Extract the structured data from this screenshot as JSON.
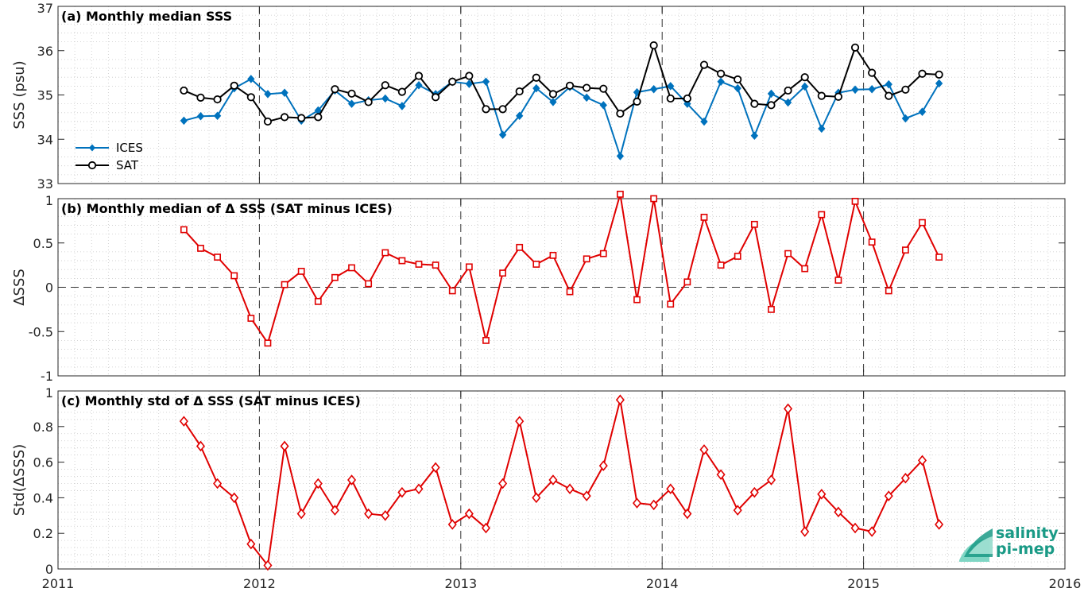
{
  "chart_data": [
    {
      "type": "line",
      "title": "(a) Monthly median SSS",
      "ylabel": "SSS (psu)",
      "xlabel": "",
      "xlim": [
        2011,
        2016
      ],
      "ylim": [
        33,
        37
      ],
      "yticks": [
        33,
        34,
        35,
        36,
        37
      ],
      "grid": "minor dotted",
      "legend_position": "middle-left",
      "series": [
        {
          "name": "ICES",
          "color": "#0072BD",
          "marker": "diamond-filled",
          "x": [
            "2011-08",
            "2011-09",
            "2011-10",
            "2011-11",
            "2011-12",
            "2012-01",
            "2012-02",
            "2012-03",
            "2012-04",
            "2012-05",
            "2012-06",
            "2012-07",
            "2012-08",
            "2012-09",
            "2012-10",
            "2012-11",
            "2012-12",
            "2013-01",
            "2013-02",
            "2013-03",
            "2013-04",
            "2013-05",
            "2013-06",
            "2013-07",
            "2013-08",
            "2013-09",
            "2013-10",
            "2013-11",
            "2013-12",
            "2014-01",
            "2014-02",
            "2014-03",
            "2014-04",
            "2014-05",
            "2014-06",
            "2014-07",
            "2014-08",
            "2014-09",
            "2014-10",
            "2014-11",
            "2014-12",
            "2015-01",
            "2015-02",
            "2015-03",
            "2015-04",
            "2015-05"
          ],
          "values": [
            34.42,
            34.52,
            34.53,
            35.15,
            35.36,
            35.02,
            35.05,
            34.42,
            34.65,
            35.1,
            34.8,
            34.88,
            34.92,
            34.75,
            35.22,
            35.02,
            35.3,
            35.25,
            35.3,
            34.1,
            34.53,
            35.15,
            34.84,
            35.18,
            34.94,
            34.77,
            33.62,
            35.06,
            35.13,
            35.2,
            34.8,
            34.4,
            35.3,
            35.15,
            34.08,
            35.03,
            34.83,
            35.19,
            34.24,
            35.05,
            35.12,
            35.13,
            35.24,
            34.47,
            34.62,
            35.26
          ]
        },
        {
          "name": "SAT",
          "color": "#000000",
          "marker": "circle-open",
          "x": [
            "2011-08",
            "2011-09",
            "2011-10",
            "2011-11",
            "2011-12",
            "2012-01",
            "2012-02",
            "2012-03",
            "2012-04",
            "2012-05",
            "2012-06",
            "2012-07",
            "2012-08",
            "2012-09",
            "2012-10",
            "2012-11",
            "2012-12",
            "2013-01",
            "2013-02",
            "2013-03",
            "2013-04",
            "2013-05",
            "2013-06",
            "2013-07",
            "2013-08",
            "2013-09",
            "2013-10",
            "2013-11",
            "2013-12",
            "2014-01",
            "2014-02",
            "2014-03",
            "2014-04",
            "2014-05",
            "2014-06",
            "2014-07",
            "2014-08",
            "2014-09",
            "2014-10",
            "2014-11",
            "2014-12",
            "2015-01",
            "2015-02",
            "2015-03",
            "2015-04",
            "2015-05"
          ],
          "values": [
            35.1,
            34.94,
            34.9,
            35.21,
            34.95,
            34.4,
            34.5,
            34.48,
            34.5,
            35.13,
            35.03,
            34.84,
            35.22,
            35.07,
            35.43,
            34.95,
            35.3,
            35.43,
            34.68,
            34.68,
            35.08,
            35.39,
            35.02,
            35.21,
            35.16,
            35.14,
            34.58,
            34.85,
            36.12,
            34.92,
            34.92,
            35.68,
            35.48,
            35.35,
            34.8,
            34.77,
            35.1,
            35.4,
            34.98,
            34.96,
            36.07,
            35.5,
            34.98,
            35.12,
            35.48,
            35.46
          ]
        }
      ]
    },
    {
      "type": "line",
      "title": "(b) Monthly median of Δ SSS (SAT minus ICES)",
      "ylabel": "ΔSSS",
      "xlabel": "",
      "xlim": [
        2011,
        2016
      ],
      "ylim": [
        -1,
        1
      ],
      "yticks": [
        -1,
        -0.5,
        0,
        0.5,
        1
      ],
      "grid": "minor dotted",
      "reference_line": 0,
      "series": [
        {
          "name": "",
          "color": "#E00000",
          "marker": "square-open",
          "x": [
            "2011-08",
            "2011-09",
            "2011-10",
            "2011-11",
            "2011-12",
            "2012-01",
            "2012-02",
            "2012-03",
            "2012-04",
            "2012-05",
            "2012-06",
            "2012-07",
            "2012-08",
            "2012-09",
            "2012-10",
            "2012-11",
            "2012-12",
            "2013-01",
            "2013-02",
            "2013-03",
            "2013-04",
            "2013-05",
            "2013-06",
            "2013-07",
            "2013-08",
            "2013-09",
            "2013-10",
            "2013-11",
            "2013-12",
            "2014-01",
            "2014-02",
            "2014-03",
            "2014-04",
            "2014-05",
            "2014-06",
            "2014-07",
            "2014-08",
            "2014-09",
            "2014-10",
            "2014-11",
            "2014-12",
            "2015-01",
            "2015-02",
            "2015-03",
            "2015-04",
            "2015-05"
          ],
          "values": [
            0.65,
            0.44,
            0.34,
            0.13,
            -0.35,
            -0.63,
            0.03,
            0.18,
            -0.16,
            0.11,
            0.22,
            0.04,
            0.39,
            0.3,
            0.26,
            0.25,
            -0.04,
            0.23,
            -0.6,
            0.16,
            0.45,
            0.26,
            0.36,
            -0.05,
            0.32,
            0.38,
            1.05,
            -0.14,
            1.0,
            -0.19,
            0.06,
            0.79,
            0.25,
            0.35,
            0.71,
            -0.25,
            0.38,
            0.21,
            0.82,
            0.08,
            0.97,
            0.51,
            -0.04,
            0.42,
            0.73,
            0.34
          ]
        }
      ]
    },
    {
      "type": "line",
      "title": "(c) Monthly std of Δ SSS (SAT minus ICES)",
      "ylabel": "Std(ΔSSS)",
      "xlabel": "",
      "xlim": [
        2011,
        2016
      ],
      "ylim": [
        0,
        1
      ],
      "yticks": [
        0,
        0.2,
        0.4,
        0.6,
        0.8,
        1
      ],
      "xticks": [
        2011,
        2012,
        2013,
        2014,
        2015,
        2016
      ],
      "grid": "minor dotted",
      "series": [
        {
          "name": "",
          "color": "#E00000",
          "marker": "diamond-open",
          "x": [
            "2011-08",
            "2011-09",
            "2011-10",
            "2011-11",
            "2011-12",
            "2012-01",
            "2012-02",
            "2012-03",
            "2012-04",
            "2012-05",
            "2012-06",
            "2012-07",
            "2012-08",
            "2012-09",
            "2012-10",
            "2012-11",
            "2012-12",
            "2013-01",
            "2013-02",
            "2013-03",
            "2013-04",
            "2013-05",
            "2013-06",
            "2013-07",
            "2013-08",
            "2013-09",
            "2013-10",
            "2013-11",
            "2013-12",
            "2014-01",
            "2014-02",
            "2014-03",
            "2014-04",
            "2014-05",
            "2014-06",
            "2014-07",
            "2014-08",
            "2014-09",
            "2014-10",
            "2014-11",
            "2014-12",
            "2015-01",
            "2015-02",
            "2015-03",
            "2015-04",
            "2015-05"
          ],
          "values": [
            0.83,
            0.69,
            0.48,
            0.4,
            0.14,
            0.02,
            0.69,
            0.31,
            0.48,
            0.33,
            0.5,
            0.31,
            0.3,
            0.43,
            0.45,
            0.57,
            0.25,
            0.31,
            0.23,
            0.48,
            0.83,
            0.4,
            0.5,
            0.45,
            0.41,
            0.58,
            0.95,
            0.37,
            0.36,
            0.45,
            0.31,
            0.67,
            0.53,
            0.33,
            0.43,
            0.5,
            0.9,
            0.21,
            0.42,
            0.32,
            0.23,
            0.21,
            0.41,
            0.51,
            0.61,
            0.25
          ]
        }
      ]
    }
  ],
  "xticks": [
    "2011",
    "2012",
    "2013",
    "2014",
    "2015",
    "2016"
  ],
  "logo": {
    "line1": "salinity",
    "line2": "pi-mep",
    "color": "#1a9a86"
  }
}
